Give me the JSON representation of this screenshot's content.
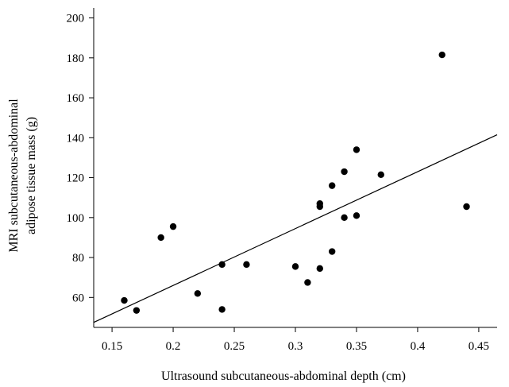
{
  "chart_data": {
    "type": "scatter",
    "title": "",
    "xlabel": "Ultrasound subcutaneous-abdominal depth (cm)",
    "ylabel_lines": [
      "MRI subcutaneous-abdominal",
      "adipose tissue mass (g)"
    ],
    "xlim": [
      0.135,
      0.465
    ],
    "ylim": [
      45,
      205
    ],
    "x_ticks": [
      {
        "value": 0.15,
        "label": "0.15"
      },
      {
        "value": 0.2,
        "label": "0.2"
      },
      {
        "value": 0.25,
        "label": "0.25"
      },
      {
        "value": 0.3,
        "label": "0.3"
      },
      {
        "value": 0.35,
        "label": "0.35"
      },
      {
        "value": 0.4,
        "label": "0.4"
      },
      {
        "value": 0.45,
        "label": "0.45"
      }
    ],
    "y_ticks": [
      {
        "value": 60,
        "label": "60"
      },
      {
        "value": 80,
        "label": "80"
      },
      {
        "value": 100,
        "label": "100"
      },
      {
        "value": 120,
        "label": "120"
      },
      {
        "value": 140,
        "label": "140"
      },
      {
        "value": 160,
        "label": "160"
      },
      {
        "value": 180,
        "label": "180"
      },
      {
        "value": 200,
        "label": "200"
      }
    ],
    "points": [
      {
        "x": 0.16,
        "y": 58.5
      },
      {
        "x": 0.17,
        "y": 53.5
      },
      {
        "x": 0.19,
        "y": 90
      },
      {
        "x": 0.2,
        "y": 95.5
      },
      {
        "x": 0.22,
        "y": 62
      },
      {
        "x": 0.24,
        "y": 54
      },
      {
        "x": 0.24,
        "y": 76.5
      },
      {
        "x": 0.26,
        "y": 76.5
      },
      {
        "x": 0.3,
        "y": 75.5
      },
      {
        "x": 0.31,
        "y": 67.5
      },
      {
        "x": 0.32,
        "y": 74.5
      },
      {
        "x": 0.32,
        "y": 105.5
      },
      {
        "x": 0.32,
        "y": 107
      },
      {
        "x": 0.33,
        "y": 116
      },
      {
        "x": 0.33,
        "y": 83
      },
      {
        "x": 0.34,
        "y": 123
      },
      {
        "x": 0.34,
        "y": 100
      },
      {
        "x": 0.35,
        "y": 134
      },
      {
        "x": 0.35,
        "y": 101
      },
      {
        "x": 0.37,
        "y": 121.5
      },
      {
        "x": 0.42,
        "y": 181.5
      },
      {
        "x": 0.44,
        "y": 105.5
      }
    ],
    "fit_line": {
      "x": [
        0.135,
        0.465
      ],
      "y": [
        47.5,
        141.5
      ]
    },
    "grid": false,
    "legend": "none"
  }
}
